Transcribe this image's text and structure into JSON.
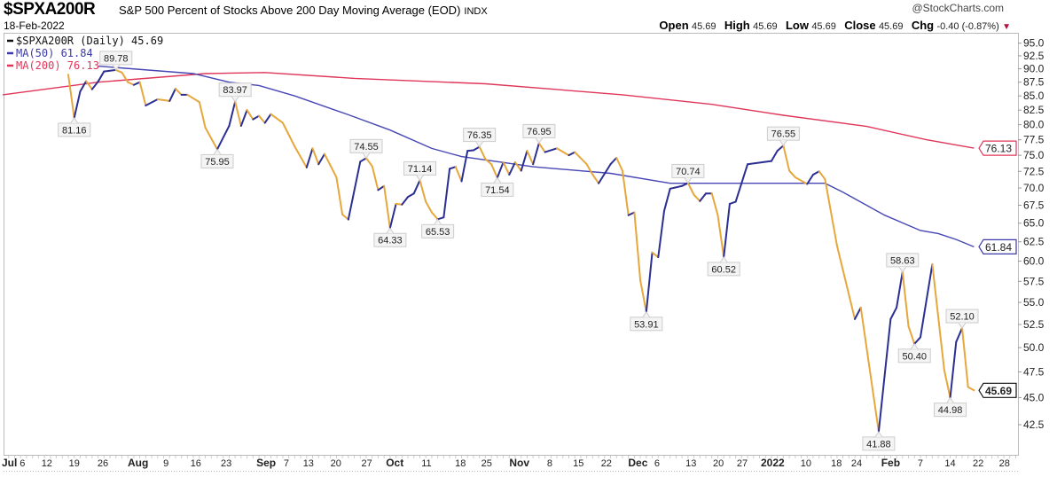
{
  "header": {
    "symbol": "$SPXA200R",
    "description": "S&P 500 Percent of Stocks Above 200 Day Moving Average (EOD)",
    "exchange": "INDX",
    "date": "18-Feb-2022",
    "logo": "@StockCharts.com",
    "open_label": "Open",
    "open": "45.69",
    "high_label": "High",
    "high": "45.69",
    "low_label": "Low",
    "low": "45.69",
    "close_label": "Close",
    "close": "45.69",
    "chg_label": "Chg",
    "chg": "-0.40 (-0.87%)",
    "chg_icon": "down-triangle-icon"
  },
  "legend": [
    {
      "text": "$SPXA200R (Daily) 45.69",
      "color": "#111111"
    },
    {
      "text": "MA(50) 61.84",
      "color": "#3a3aa8"
    },
    {
      "text": "MA(200) 76.13",
      "color": "#e0365a"
    }
  ],
  "colors": {
    "up": "#2c2f92",
    "down": "#e6a73c",
    "ma50": "#4646b4",
    "ma200": "#e0365a",
    "last": "#111111"
  },
  "chart_data": {
    "type": "line",
    "title": "$SPXA200R S&P 500 Percent of Stocks Above 200 Day Moving Average (EOD)",
    "x_unit": "trading day index (0 = start of price line, 152 = 18-Feb-2022)",
    "y_scale": "log",
    "ylim": [
      40.5,
      97
    ],
    "xlim": [
      -11,
      159
    ],
    "y_ticks": [
      "95.0",
      "92.5",
      "90.0",
      "87.5",
      "85.0",
      "82.5",
      "80.0",
      "77.5",
      "75.0",
      "72.5",
      "70.0",
      "67.5",
      "65.0",
      "62.5",
      "60.0",
      "57.5",
      "55.0",
      "52.5",
      "50.0",
      "47.5",
      "45.0",
      "42.5"
    ],
    "x_ticks": [
      {
        "t": -10.5,
        "label": "Jul",
        "month": true
      },
      {
        "t": -8.4,
        "label": "6"
      },
      {
        "t": -3.6,
        "label": "12"
      },
      {
        "t": 1,
        "label": "19"
      },
      {
        "t": 5.8,
        "label": "26"
      },
      {
        "t": 11.7,
        "label": "Aug",
        "month": true
      },
      {
        "t": 16.4,
        "label": "9"
      },
      {
        "t": 21.4,
        "label": "16"
      },
      {
        "t": 26.5,
        "label": "23"
      },
      {
        "t": 33.2,
        "label": "Sep",
        "month": true
      },
      {
        "t": 36.6,
        "label": "7"
      },
      {
        "t": 40.3,
        "label": "13"
      },
      {
        "t": 44.9,
        "label": "20"
      },
      {
        "t": 50.1,
        "label": "27"
      },
      {
        "t": 54.8,
        "label": "Oct",
        "month": true
      },
      {
        "t": 60.1,
        "label": "11"
      },
      {
        "t": 65.8,
        "label": "18"
      },
      {
        "t": 70.2,
        "label": "25"
      },
      {
        "t": 75.7,
        "label": "Nov",
        "month": true
      },
      {
        "t": 80.8,
        "label": "8"
      },
      {
        "t": 85.6,
        "label": "15"
      },
      {
        "t": 90.3,
        "label": "22"
      },
      {
        "t": 95.6,
        "label": "Dec",
        "month": true
      },
      {
        "t": 98.8,
        "label": "6"
      },
      {
        "t": 104.5,
        "label": "13"
      },
      {
        "t": 109.1,
        "label": "20"
      },
      {
        "t": 113.1,
        "label": "27"
      },
      {
        "t": 118.2,
        "label": "2022",
        "month": true
      },
      {
        "t": 123.8,
        "label": "10"
      },
      {
        "t": 128.9,
        "label": "18"
      },
      {
        "t": 132.3,
        "label": "24"
      },
      {
        "t": 138,
        "label": "Feb",
        "month": true
      },
      {
        "t": 143,
        "label": "7"
      },
      {
        "t": 148,
        "label": "14"
      },
      {
        "t": 152.7,
        "label": "22"
      },
      {
        "t": 157.1,
        "label": "28"
      }
    ],
    "series": [
      {
        "name": "$SPXA200R (Daily)",
        "points": [
          [
            0,
            88.9
          ],
          [
            1,
            81.16
          ],
          [
            2,
            85.8
          ],
          [
            3,
            87.7
          ],
          [
            4,
            86.2
          ],
          [
            5,
            87.6
          ],
          [
            6,
            89.5
          ],
          [
            8,
            89.78
          ],
          [
            9,
            89.3
          ],
          [
            10,
            87.5
          ],
          [
            11,
            87.0
          ],
          [
            12,
            87.5
          ],
          [
            13,
            83.3
          ],
          [
            15,
            84.4
          ],
          [
            17,
            84.1
          ],
          [
            18,
            86.3
          ],
          [
            19,
            85.2
          ],
          [
            20,
            85.2
          ],
          [
            22,
            83.9
          ],
          [
            23,
            79.5
          ],
          [
            25,
            75.95
          ],
          [
            27,
            79.8
          ],
          [
            28,
            83.97
          ],
          [
            29,
            79.8
          ],
          [
            30,
            82.5
          ],
          [
            31,
            80.9
          ],
          [
            32,
            81.5
          ],
          [
            33,
            80.3
          ],
          [
            34,
            81.8
          ],
          [
            36,
            80.3
          ],
          [
            38,
            76.4
          ],
          [
            40,
            73.1
          ],
          [
            41,
            76.1
          ],
          [
            42,
            73.6
          ],
          [
            43,
            75.2
          ],
          [
            45,
            71.6
          ],
          [
            46,
            66.2
          ],
          [
            47,
            65.5
          ],
          [
            49,
            74.0
          ],
          [
            50,
            74.55
          ],
          [
            51,
            73.3
          ],
          [
            52,
            69.7
          ],
          [
            53,
            70.3
          ],
          [
            54,
            64.33
          ],
          [
            55,
            67.7
          ],
          [
            56,
            67.6
          ],
          [
            57,
            68.7
          ],
          [
            58,
            69.2
          ],
          [
            59,
            71.14
          ],
          [
            60,
            68.0
          ],
          [
            61,
            66.5
          ],
          [
            62,
            65.53
          ],
          [
            63,
            65.8
          ],
          [
            64,
            72.9
          ],
          [
            65,
            73.2
          ],
          [
            66,
            71.0
          ],
          [
            67,
            75.7
          ],
          [
            68,
            75.8
          ],
          [
            69,
            76.35
          ],
          [
            70,
            74.4
          ],
          [
            71,
            73.6
          ],
          [
            72,
            71.54
          ],
          [
            73,
            73.9
          ],
          [
            74,
            72.0
          ],
          [
            75,
            73.9
          ],
          [
            76,
            72.6
          ],
          [
            77,
            75.7
          ],
          [
            78,
            73.6
          ],
          [
            79,
            76.95
          ],
          [
            80,
            75.5
          ],
          [
            82,
            76.1
          ],
          [
            84,
            75.0
          ],
          [
            85,
            75.5
          ],
          [
            87,
            73.6
          ],
          [
            88,
            72.0
          ],
          [
            89,
            70.7
          ],
          [
            91,
            73.6
          ],
          [
            92,
            74.6
          ],
          [
            93,
            72.6
          ],
          [
            94,
            66.1
          ],
          [
            95,
            66.5
          ],
          [
            96,
            57.6
          ],
          [
            97,
            53.91
          ],
          [
            98,
            61.1
          ],
          [
            99,
            60.5
          ],
          [
            100,
            66.7
          ],
          [
            101,
            69.9
          ],
          [
            103,
            70.3
          ],
          [
            104,
            70.74
          ],
          [
            105,
            69.0
          ],
          [
            106,
            68.1
          ],
          [
            107,
            69.2
          ],
          [
            108,
            69.2
          ],
          [
            109,
            66.1
          ],
          [
            110,
            60.52
          ],
          [
            111,
            67.7
          ],
          [
            112,
            68.0
          ],
          [
            114,
            73.6
          ],
          [
            118,
            74.1
          ],
          [
            119,
            75.7
          ],
          [
            120,
            76.55
          ],
          [
            121,
            72.6
          ],
          [
            122,
            71.6
          ],
          [
            124,
            70.6
          ],
          [
            125,
            72.0
          ],
          [
            126,
            72.5
          ],
          [
            127,
            71.3
          ],
          [
            129,
            62.0
          ],
          [
            132,
            53.1
          ],
          [
            133,
            54.4
          ],
          [
            136,
            41.88
          ],
          [
            138,
            53.1
          ],
          [
            139,
            54.4
          ],
          [
            140,
            58.63
          ],
          [
            141,
            52.3
          ],
          [
            142,
            50.4
          ],
          [
            143,
            51.1
          ],
          [
            145,
            59.6
          ],
          [
            147,
            47.7
          ],
          [
            148,
            44.98
          ],
          [
            149,
            50.6
          ],
          [
            150,
            52.1
          ],
          [
            151,
            46.0
          ],
          [
            152,
            45.69
          ]
        ]
      },
      {
        "name": "MA(50)",
        "points": [
          [
            5,
            90.5
          ],
          [
            21,
            89.1
          ],
          [
            27,
            87.5
          ],
          [
            32,
            86.9
          ],
          [
            38,
            85.0
          ],
          [
            47,
            81.7
          ],
          [
            54,
            79.1
          ],
          [
            61,
            76.1
          ],
          [
            66,
            74.8
          ],
          [
            78,
            73.2
          ],
          [
            91,
            72.2
          ],
          [
            101,
            70.7
          ],
          [
            106,
            70.7
          ],
          [
            112,
            70.7
          ],
          [
            127,
            70.7
          ],
          [
            130,
            69.4
          ],
          [
            137,
            66.1
          ],
          [
            143,
            64.0
          ],
          [
            146,
            63.6
          ],
          [
            149,
            62.8
          ],
          [
            152,
            61.84
          ]
        ]
      },
      {
        "name": "MA(200)",
        "points": [
          [
            -11,
            85.2
          ],
          [
            5,
            87.5
          ],
          [
            23,
            89.1
          ],
          [
            33,
            89.3
          ],
          [
            48,
            88.2
          ],
          [
            70,
            87.2
          ],
          [
            93,
            85.2
          ],
          [
            108,
            83.5
          ],
          [
            120,
            81.6
          ],
          [
            134,
            79.7
          ],
          [
            144,
            77.5
          ],
          [
            152,
            76.13
          ]
        ]
      }
    ],
    "annotations": [
      {
        "t": 1,
        "v": 81.16,
        "text": "81.16",
        "pos": "below"
      },
      {
        "t": 8,
        "v": 89.78,
        "text": "89.78",
        "pos": "above"
      },
      {
        "t": 28,
        "v": 83.97,
        "text": "83.97",
        "pos": "above"
      },
      {
        "t": 25,
        "v": 75.95,
        "text": "75.95",
        "pos": "below"
      },
      {
        "t": 50,
        "v": 74.55,
        "text": "74.55",
        "pos": "above"
      },
      {
        "t": 54,
        "v": 64.33,
        "text": "64.33",
        "pos": "below"
      },
      {
        "t": 59,
        "v": 71.14,
        "text": "71.14",
        "pos": "above"
      },
      {
        "t": 62,
        "v": 65.53,
        "text": "65.53",
        "pos": "below"
      },
      {
        "t": 69,
        "v": 76.35,
        "text": "76.35",
        "pos": "above"
      },
      {
        "t": 72,
        "v": 71.54,
        "text": "71.54",
        "pos": "below"
      },
      {
        "t": 79,
        "v": 76.95,
        "text": "76.95",
        "pos": "above"
      },
      {
        "t": 97,
        "v": 53.91,
        "text": "53.91",
        "pos": "below"
      },
      {
        "t": 104,
        "v": 70.74,
        "text": "70.74",
        "pos": "above"
      },
      {
        "t": 110,
        "v": 60.52,
        "text": "60.52",
        "pos": "below"
      },
      {
        "t": 120,
        "v": 76.55,
        "text": "76.55",
        "pos": "above"
      },
      {
        "t": 136,
        "v": 41.88,
        "text": "41.88",
        "pos": "below"
      },
      {
        "t": 140,
        "v": 58.63,
        "text": "58.63",
        "pos": "above"
      },
      {
        "t": 142,
        "v": 50.4,
        "text": "50.40",
        "pos": "below"
      },
      {
        "t": 150,
        "v": 52.1,
        "text": "52.10",
        "pos": "above"
      },
      {
        "t": 148,
        "v": 44.98,
        "text": "44.98",
        "pos": "below"
      }
    ],
    "last_value_badges": [
      {
        "v": 76.13,
        "text": "76.13",
        "color": "#e0365a"
      },
      {
        "v": 61.84,
        "text": "61.84",
        "color": "#3a3aa8"
      },
      {
        "v": 45.69,
        "text": "45.69",
        "color": "#111111",
        "bold": true
      }
    ]
  }
}
